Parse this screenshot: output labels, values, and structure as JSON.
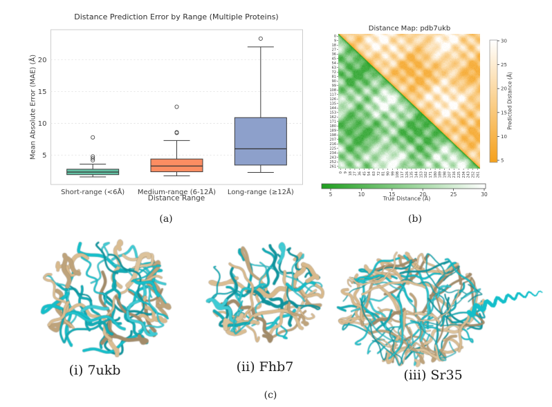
{
  "figure": {
    "captions": {
      "a": "(a)",
      "b": "(b)",
      "c": "(c)"
    },
    "panel_c": {
      "items": [
        {
          "label": "(i) 7ukb"
        },
        {
          "label": "(ii) Fhb7"
        },
        {
          "label": "(iii) Sr35"
        }
      ],
      "ribbon_colors": {
        "cyan": "#14bfca",
        "tan": "#d8b98c"
      }
    }
  },
  "chart_data": [
    {
      "type": "box",
      "title": "Distance Prediction Error by Range (Multiple Proteins)",
      "xlabel": "Distance Range",
      "ylabel": "Mean Absolute Error (MAE) (Å)",
      "ylim": [
        0.4,
        24.7
      ],
      "yticks": [
        5,
        10,
        15,
        20
      ],
      "grid": "horizontal dashed",
      "categories": [
        "Short-range (<6Å)",
        "Medium-range (6-12Å)",
        "Long-range (≥12Å)"
      ],
      "series": [
        {
          "name": "Short-range (<6Å)",
          "color": "#66c2a5",
          "whislo": 1.6,
          "q1": 1.95,
          "med": 2.35,
          "q3": 2.8,
          "whishi": 3.6,
          "fliers": [
            4.2,
            4.5,
            4.8,
            7.8
          ]
        },
        {
          "name": "Medium-range (6-12Å)",
          "color": "#fc8d62",
          "whislo": 1.75,
          "q1": 2.4,
          "med": 3.3,
          "q3": 4.4,
          "whishi": 7.3,
          "fliers": [
            8.5,
            8.6,
            12.6
          ]
        },
        {
          "name": "Long-range (≥12Å)",
          "color": "#8da0cb",
          "whislo": 2.3,
          "q1": 3.45,
          "med": 6.0,
          "q3": 10.9,
          "whishi": 22.0,
          "fliers": [
            23.3
          ]
        }
      ]
    },
    {
      "type": "heatmap",
      "title": "Distance Map: pdb7ukb",
      "n_residues": 270,
      "axis_ticks": [
        0,
        9,
        18,
        27,
        36,
        45,
        54,
        63,
        72,
        81,
        90,
        99,
        108,
        117,
        126,
        135,
        144,
        153,
        162,
        171,
        180,
        189,
        198,
        207,
        216,
        225,
        234,
        243,
        252,
        261
      ],
      "upper_triangle": {
        "label": "Predicted Distance (Å)",
        "color_low": "#f5a11c",
        "color_high": "#ffffff",
        "value_range": [
          5,
          30
        ],
        "colorbar_ticks": [
          5,
          10,
          15,
          20,
          25,
          30
        ],
        "colorbar_side": "right"
      },
      "lower_triangle": {
        "label": "True Distance (Å)",
        "color_low": "#1e9e1e",
        "color_high": "#ffffff",
        "value_range": [
          5,
          30
        ],
        "colorbar_ticks": [
          5,
          10,
          15,
          20,
          25,
          30
        ],
        "colorbar_side": "bottom"
      }
    }
  ]
}
